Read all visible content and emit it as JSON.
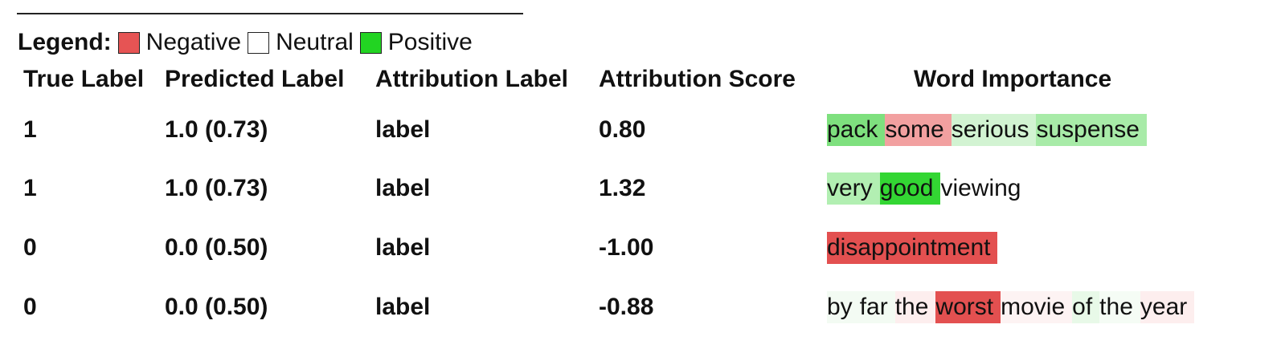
{
  "legend": {
    "title": "Legend:",
    "items": [
      {
        "label": "Negative",
        "color": "#e65454"
      },
      {
        "label": "Neutral",
        "color": "#ffffff"
      },
      {
        "label": "Positive",
        "color": "#22d422"
      }
    ]
  },
  "table": {
    "headers": [
      "True Label",
      "Predicted Label",
      "Attribution Label",
      "Attribution Score",
      "Word Importance"
    ],
    "rows": [
      {
        "true_label": "1",
        "predicted_label": "1.0 (0.73)",
        "attribution_label": "label",
        "attribution_score": "0.80",
        "words": [
          {
            "text": "pack",
            "color": "#7ee07e"
          },
          {
            "text": "some",
            "color": "#f2a0a0"
          },
          {
            "text": "serious",
            "color": "#d2f3d2"
          },
          {
            "text": "suspense",
            "color": "#a8eba8"
          }
        ]
      },
      {
        "true_label": "1",
        "predicted_label": "1.0 (0.73)",
        "attribution_label": "label",
        "attribution_score": "1.32",
        "words": [
          {
            "text": "very",
            "color": "#b2efb2"
          },
          {
            "text": "good",
            "color": "#33d633"
          },
          {
            "text": "viewing",
            "color": "#ffffff"
          }
        ]
      },
      {
        "true_label": "0",
        "predicted_label": "0.0 (0.50)",
        "attribution_label": "label",
        "attribution_score": "-1.00",
        "words": [
          {
            "text": "disappointment",
            "color": "#e35050"
          }
        ]
      },
      {
        "true_label": "0",
        "predicted_label": "0.0 (0.50)",
        "attribution_label": "label",
        "attribution_score": "-0.88",
        "words": [
          {
            "text": "by",
            "color": "#f3fbf3"
          },
          {
            "text": "far",
            "color": "#f3fbf3"
          },
          {
            "text": "the",
            "color": "#fdeeee"
          },
          {
            "text": "worst",
            "color": "#e35050"
          },
          {
            "text": "movie",
            "color": "#fdf3f3"
          },
          {
            "text": "of",
            "color": "#e8f9e8"
          },
          {
            "text": "the",
            "color": "#f5fcf5"
          },
          {
            "text": "year",
            "color": "#fdeeee"
          }
        ]
      }
    ]
  }
}
